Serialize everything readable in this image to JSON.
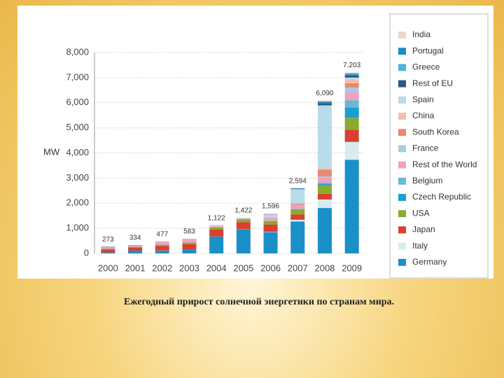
{
  "chart_data": {
    "type": "bar",
    "stacked": true,
    "y_label": "MW",
    "categories": [
      "2000",
      "2001",
      "2002",
      "2003",
      "2004",
      "2005",
      "2006",
      "2007",
      "2008",
      "2009"
    ],
    "ylim": [
      0,
      8000
    ],
    "yticks": [
      0,
      {
        "value": 1000,
        "label": "1,000"
      },
      {
        "value": 2000,
        "label": "2,000"
      },
      {
        "value": 3000,
        "label": "3,000"
      },
      {
        "value": 4000,
        "label": "4,000"
      },
      {
        "value": 5000,
        "label": "5,000"
      },
      {
        "value": 6000,
        "label": "6,000"
      },
      {
        "value": 7000,
        "label": "7,000"
      },
      {
        "value": 8000,
        "label": "8,000"
      }
    ],
    "grid": true,
    "legend": "right",
    "totals": [
      273,
      334,
      477,
      583,
      1122,
      1422,
      1596,
      2594,
      6090,
      7203
    ],
    "total_labels": [
      "273",
      "334",
      "477",
      "583",
      "1,122",
      "1,422",
      "1,596",
      "2,594",
      "6,090",
      "7,203"
    ],
    "series": [
      {
        "name": "India",
        "color": "#f0d6c4",
        "values": [
          0,
          0,
          0,
          0,
          0,
          0,
          45,
          0,
          40,
          30
        ]
      },
      {
        "name": "Portugal",
        "color": "#1a8cc6",
        "values": [
          0,
          0,
          0,
          0,
          0,
          0,
          1,
          14,
          50,
          34
        ]
      },
      {
        "name": "Greece",
        "color": "#52b2da",
        "values": [
          0,
          0,
          0,
          0,
          0,
          0,
          1,
          2,
          11,
          36
        ]
      },
      {
        "name": "Rest of EU",
        "color": "#2a5886",
        "values": [
          9,
          8,
          8,
          7,
          5,
          0,
          10,
          20,
          93,
          100
        ]
      },
      {
        "name": "Spain",
        "color": "#b8dcea",
        "values": [
          1,
          1,
          9,
          10,
          10,
          23,
          106,
          560,
          2511,
          69
        ]
      },
      {
        "name": "China",
        "color": "#f4c0a8",
        "values": [
          0,
          0,
          10,
          10,
          10,
          5,
          10,
          20,
          45,
          160
        ]
      },
      {
        "name": "South Korea",
        "color": "#e88a70",
        "values": [
          0,
          0,
          0,
          0,
          3,
          2,
          21,
          43,
          276,
          168
        ]
      },
      {
        "name": "France",
        "color": "#a8cce4",
        "values": [
          3,
          3,
          6,
          7,
          8,
          10,
          12,
          11,
          46,
          185
        ]
      },
      {
        "name": "Rest of the World",
        "color": "#f0a0c0",
        "values": [
          80,
          60,
          100,
          120,
          50,
          20,
          100,
          145,
          200,
          320
        ]
      },
      {
        "name": "Belgium",
        "color": "#6ab8d8",
        "values": [
          0,
          0,
          0,
          0,
          0,
          0,
          2,
          18,
          48,
          292
        ]
      },
      {
        "name": "Czech Republic",
        "color": "#18a0d0",
        "values": [
          0,
          0,
          0,
          0,
          0,
          0,
          0,
          3,
          51,
          411
        ]
      },
      {
        "name": "USA",
        "color": "#8aaa30",
        "values": [
          18,
          29,
          44,
          63,
          90,
          114,
          145,
          207,
          342,
          473
        ]
      },
      {
        "name": "Japan",
        "color": "#d84030",
        "values": [
          122,
          123,
          185,
          223,
          272,
          290,
          287,
          210,
          230,
          484
        ]
      },
      {
        "name": "Italy",
        "color": "#d8ecf0",
        "values": [
          0,
          0,
          5,
          4,
          4,
          7,
          13,
          70,
          338,
          711
        ]
      },
      {
        "name": "Germany",
        "color": "#1a90c8",
        "values": [
          40,
          110,
          110,
          139,
          670,
          951,
          843,
          1271,
          1809,
          3730
        ]
      }
    ]
  },
  "caption": "Ежегодный прирост солнечной энергетики по странам мира."
}
